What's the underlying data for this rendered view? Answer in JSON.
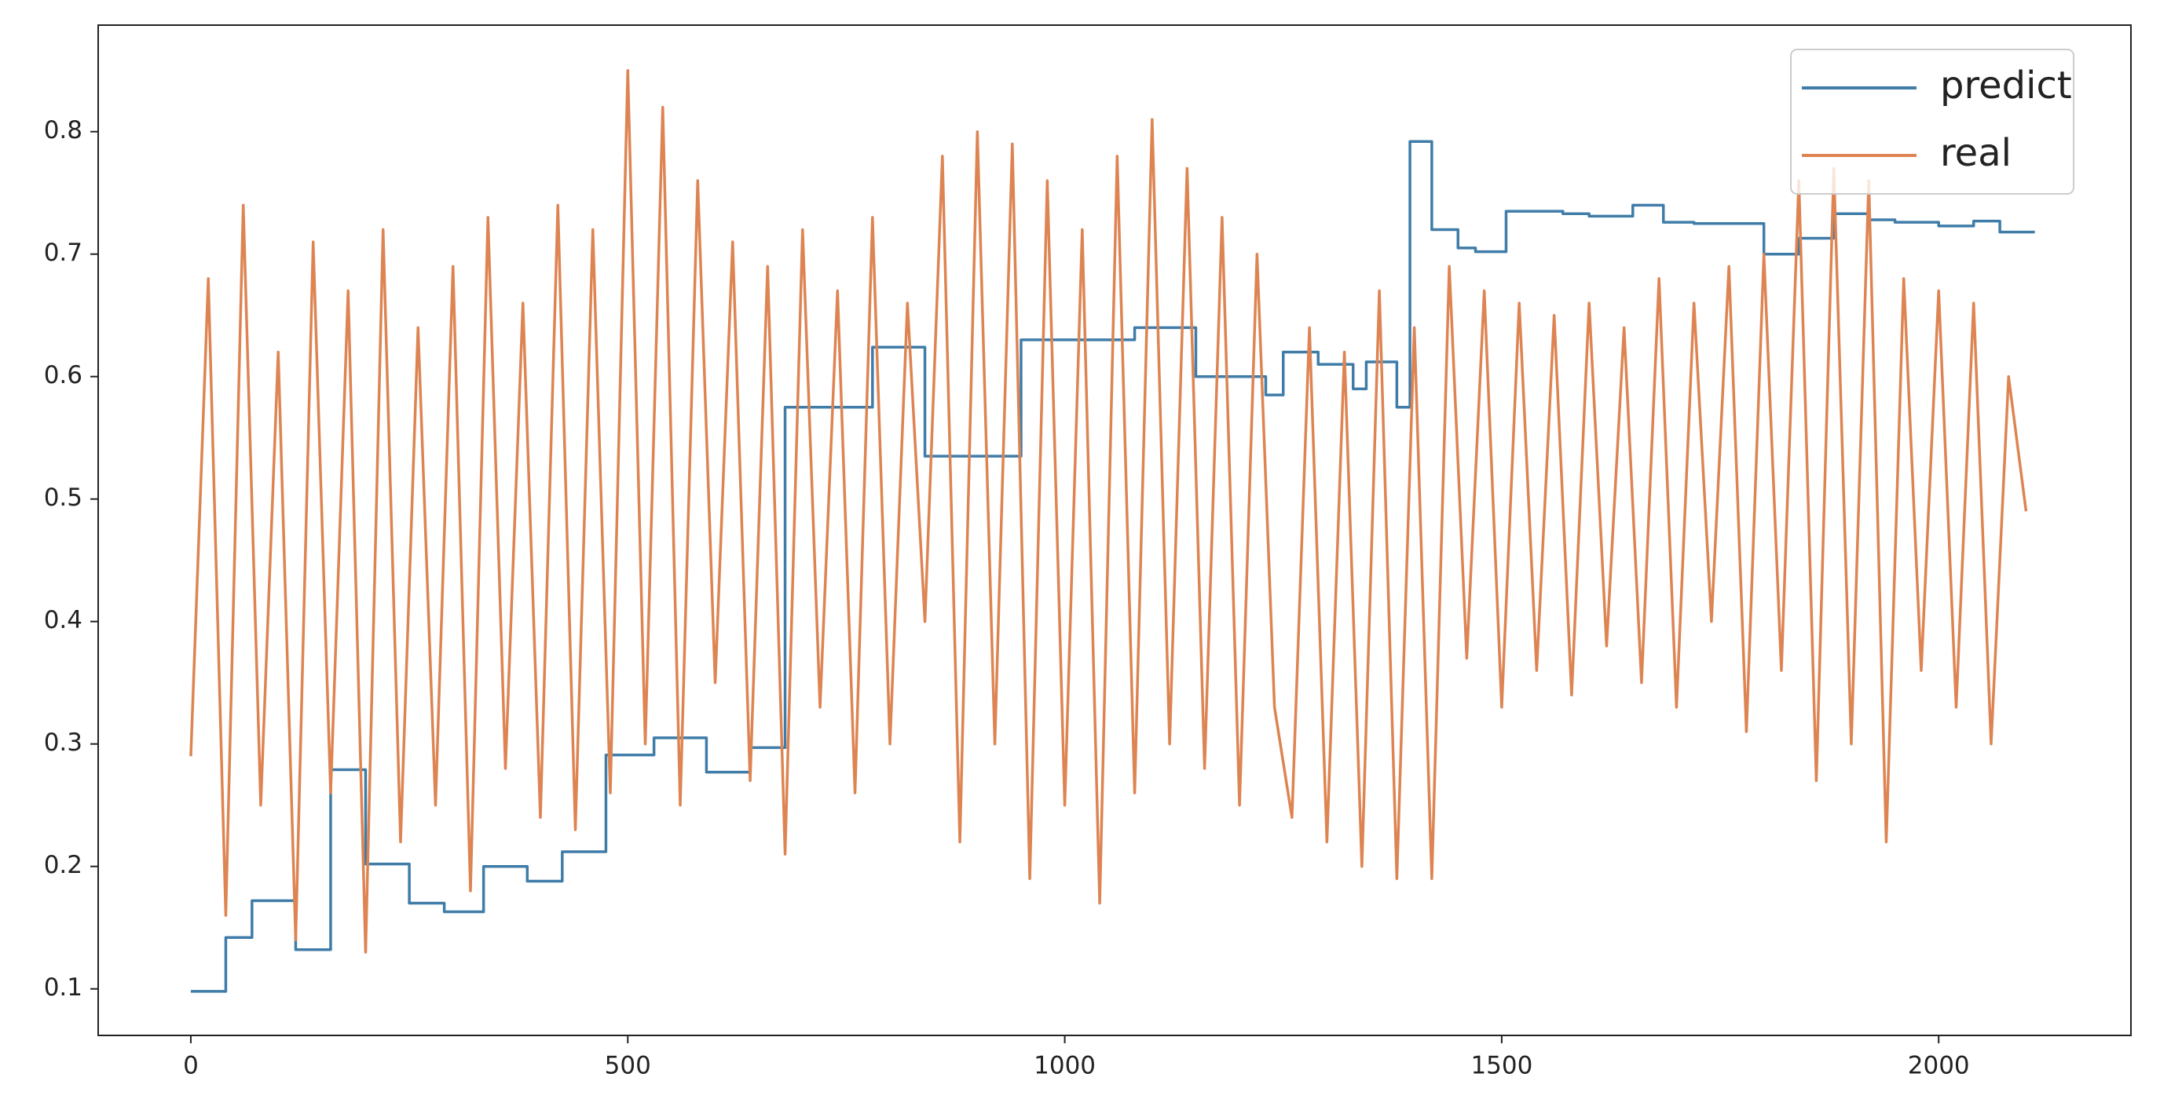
{
  "chart_data": {
    "type": "line",
    "xlim": [
      -106,
      2220
    ],
    "ylim": [
      0.062,
      0.887
    ],
    "xticks": [
      0,
      500,
      1000,
      1500,
      2000
    ],
    "yticks": [
      0.1,
      0.2,
      0.3,
      0.4,
      0.5,
      0.6,
      0.7,
      0.8
    ],
    "grid": false,
    "legend": "upper right",
    "series": [
      {
        "name": "predict",
        "color": "#3f7ca8",
        "step": "post",
        "x": [
          0,
          40,
          70,
          120,
          160,
          200,
          250,
          290,
          335,
          385,
          425,
          475,
          530,
          590,
          640,
          680,
          780,
          840,
          950,
          1080,
          1150,
          1230,
          1250,
          1290,
          1330,
          1345,
          1380,
          1395,
          1420,
          1450,
          1470,
          1505,
          1570,
          1600,
          1650,
          1685,
          1720,
          1800,
          1840,
          1880,
          1920,
          1950,
          2000,
          2040,
          2070,
          2110
        ],
        "values": [
          0.098,
          0.142,
          0.172,
          0.132,
          0.279,
          0.202,
          0.17,
          0.163,
          0.2,
          0.188,
          0.212,
          0.291,
          0.305,
          0.277,
          0.297,
          0.575,
          0.624,
          0.535,
          0.63,
          0.64,
          0.6,
          0.585,
          0.62,
          0.61,
          0.59,
          0.612,
          0.575,
          0.792,
          0.72,
          0.705,
          0.702,
          0.735,
          0.733,
          0.731,
          0.74,
          0.726,
          0.725,
          0.7,
          0.713,
          0.733,
          0.728,
          0.726,
          0.723,
          0.727,
          0.718,
          0.718
        ]
      },
      {
        "name": "real",
        "color": "#dd8452",
        "x": [
          0,
          20,
          40,
          60,
          80,
          100,
          120,
          140,
          160,
          180,
          200,
          220,
          240,
          260,
          280,
          300,
          320,
          340,
          360,
          380,
          400,
          420,
          440,
          460,
          480,
          500,
          520,
          540,
          560,
          580,
          600,
          620,
          640,
          660,
          680,
          700,
          720,
          740,
          760,
          780,
          800,
          820,
          840,
          860,
          880,
          900,
          920,
          940,
          960,
          980,
          1000,
          1020,
          1040,
          1060,
          1080,
          1100,
          1120,
          1140,
          1160,
          1180,
          1200,
          1220,
          1240,
          1260,
          1280,
          1300,
          1320,
          1340,
          1360,
          1380,
          1400,
          1420,
          1440,
          1460,
          1480,
          1500,
          1520,
          1540,
          1560,
          1580,
          1600,
          1620,
          1640,
          1660,
          1680,
          1700,
          1720,
          1740,
          1760,
          1780,
          1800,
          1820,
          1840,
          1860,
          1880,
          1900,
          1920,
          1940,
          1960,
          1980,
          2000,
          2020,
          2040,
          2060,
          2080,
          2100
        ],
        "values": [
          0.29,
          0.68,
          0.16,
          0.74,
          0.25,
          0.62,
          0.14,
          0.71,
          0.26,
          0.67,
          0.13,
          0.72,
          0.22,
          0.64,
          0.25,
          0.69,
          0.18,
          0.73,
          0.28,
          0.66,
          0.24,
          0.74,
          0.23,
          0.72,
          0.26,
          0.85,
          0.3,
          0.82,
          0.25,
          0.76,
          0.35,
          0.71,
          0.27,
          0.69,
          0.21,
          0.72,
          0.33,
          0.67,
          0.26,
          0.73,
          0.3,
          0.66,
          0.4,
          0.78,
          0.22,
          0.8,
          0.3,
          0.79,
          0.19,
          0.76,
          0.25,
          0.72,
          0.17,
          0.78,
          0.26,
          0.81,
          0.3,
          0.77,
          0.28,
          0.73,
          0.25,
          0.7,
          0.33,
          0.24,
          0.64,
          0.22,
          0.62,
          0.2,
          0.67,
          0.19,
          0.64,
          0.19,
          0.69,
          0.37,
          0.67,
          0.33,
          0.66,
          0.36,
          0.65,
          0.34,
          0.66,
          0.38,
          0.64,
          0.35,
          0.68,
          0.33,
          0.66,
          0.4,
          0.69,
          0.31,
          0.7,
          0.36,
          0.76,
          0.27,
          0.77,
          0.3,
          0.76,
          0.22,
          0.68,
          0.36,
          0.67,
          0.33,
          0.66,
          0.3,
          0.6,
          0.49
        ]
      }
    ]
  }
}
